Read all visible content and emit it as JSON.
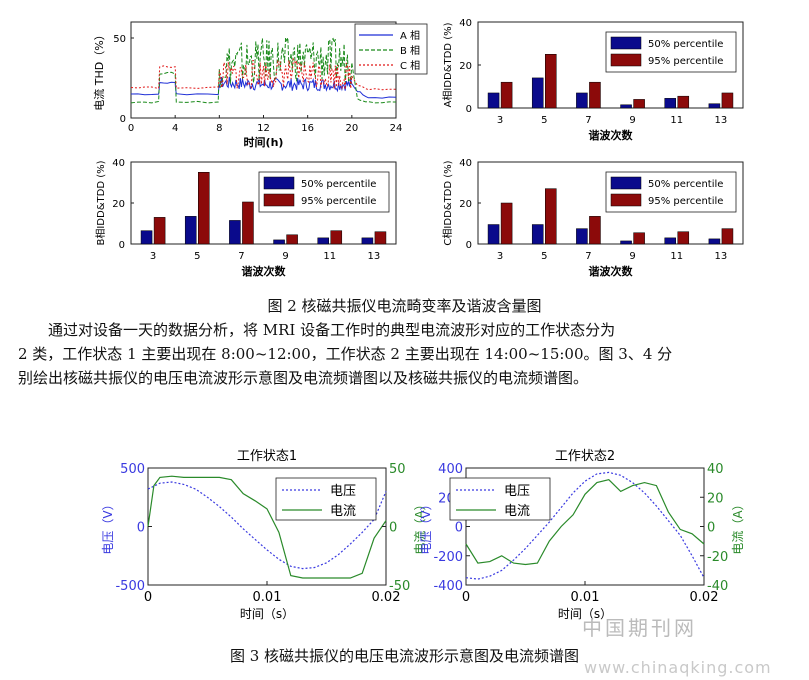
{
  "figure2": {
    "caption": "图 2 核磁共振仪电流畸变率及谐波含量图",
    "thd_chart": {
      "ylabel": "电流 THD（%）",
      "xlabel": "时间(h)",
      "xticks": [
        "0",
        "4",
        "8",
        "12",
        "16",
        "20",
        "24"
      ],
      "yticks": [
        "0",
        "50"
      ],
      "ylim": [
        0,
        60
      ],
      "legend": [
        "A 相",
        "B 相",
        "C 相"
      ],
      "colors": [
        "#1f2fd6",
        "#1a8a1a",
        "#e01818"
      ]
    },
    "harmonic_charts": [
      {
        "ylabel": "A相IDD&TDD (%)",
        "xlabel": "",
        "yticks": [
          "0",
          "20",
          "40"
        ]
      },
      {
        "ylabel": "B相IDD&TDD (%)",
        "xlabel": "谐波次数",
        "yticks": [
          "0",
          "20",
          "40"
        ]
      },
      {
        "ylabel": "C相IDD&TDD (%)",
        "xlabel": "谐波次数",
        "yticks": [
          "0",
          "20",
          "40"
        ]
      }
    ],
    "harmonic_xlabel_a": "谐波次数",
    "legend_50": "50% percentile",
    "legend_95": "95% percentile",
    "color_50": "#0a0a8c",
    "color_95": "#8c0a0a"
  },
  "paragraph": {
    "line1": "通过对设备一天的数据分析，将 MRI 设备工作时的典型电流波形对应的工作状态分为",
    "line2": "2 类，工作状态 1  主要出现在 8:00~12:00，工作状态 2 主要出现在 14:00~15:00。图 3、4 分",
    "line3": "别绘出核磁共振仪的电压电流波形示意图及电流频谱图以及核磁共振仪的电流频谱图。"
  },
  "figure3": {
    "caption": "图 3  核磁共振仪的电压电流波形示意图及电流频谱图",
    "panels": [
      {
        "title": "工作状态1",
        "left_label": "电压（V）",
        "right_label": "电流（A）",
        "xlabel": "时间（s）",
        "left_ticks": [
          "500",
          "0",
          "-500"
        ],
        "right_ticks": [
          "50",
          "0",
          "-50"
        ],
        "xticks": [
          "0",
          "0.01",
          "0.02"
        ]
      },
      {
        "title": "工作状态2",
        "left_label": "电压（V）",
        "right_label": "电流（A）",
        "xlabel": "时间（s）",
        "left_ticks": [
          "400",
          "200",
          "0",
          "-200",
          "-400"
        ],
        "right_ticks": [
          "40",
          "20",
          "0",
          "-20",
          "-40"
        ],
        "xticks": [
          "0",
          "0.01",
          "0.02"
        ]
      }
    ],
    "legend_voltage": "电压",
    "legend_current": "电流",
    "voltage_color": "#3a3ae0",
    "current_color": "#2a8a2a"
  },
  "watermark": {
    "cn": "中国期刊网",
    "url": "www.chinaqking.com"
  },
  "chart_data": [
    {
      "type": "line",
      "title": "",
      "xlabel": "时间(h)",
      "ylabel": "电流 THD（%）",
      "xlim": [
        0,
        24
      ],
      "ylim": [
        0,
        60
      ],
      "series": [
        {
          "name": "A 相",
          "x": [
            0,
            2.5,
            2.6,
            4,
            4.1,
            7.9,
            8,
            12,
            16,
            20,
            20.5,
            21.5,
            24
          ],
          "values": [
            15,
            15,
            22,
            22,
            15,
            15,
            22,
            21,
            21,
            21,
            17,
            13,
            13
          ]
        },
        {
          "name": "B 相",
          "x": [
            0,
            2.5,
            2.6,
            4,
            4.1,
            7.9,
            8,
            12,
            16,
            20,
            20.5,
            21.5,
            24
          ],
          "values": [
            10,
            10,
            28,
            28,
            10,
            10,
            33,
            36,
            37,
            35,
            12,
            10,
            10
          ]
        },
        {
          "name": "C 相",
          "x": [
            0,
            2.5,
            2.6,
            4,
            4.1,
            7.9,
            8,
            12,
            16,
            20,
            20.5,
            21.5,
            24
          ],
          "values": [
            19,
            19,
            32,
            32,
            19,
            19,
            26,
            28,
            28,
            26,
            21,
            18,
            18
          ]
        }
      ]
    },
    {
      "type": "bar",
      "xlabel": "谐波次数",
      "ylabel": "A相IDD&TDD (%)",
      "ylim": [
        0,
        40
      ],
      "categories": [
        "3",
        "5",
        "7",
        "9",
        "11",
        "13"
      ],
      "series": [
        {
          "name": "50% percentile",
          "values": [
            7,
            14,
            7,
            1.5,
            4.5,
            2
          ]
        },
        {
          "name": "95% percentile",
          "values": [
            12,
            25,
            12,
            4,
            5.5,
            7
          ]
        }
      ]
    },
    {
      "type": "bar",
      "xlabel": "谐波次数",
      "ylabel": "B相IDD&TDD (%)",
      "ylim": [
        0,
        40
      ],
      "categories": [
        "3",
        "5",
        "7",
        "9",
        "11",
        "13"
      ],
      "series": [
        {
          "name": "50% percentile",
          "values": [
            6.5,
            13.5,
            11.5,
            2,
            3,
            3
          ]
        },
        {
          "name": "95% percentile",
          "values": [
            13,
            35,
            20.5,
            4.5,
            6.5,
            6
          ]
        }
      ]
    },
    {
      "type": "bar",
      "xlabel": "谐波次数",
      "ylabel": "C相IDD&TDD (%)",
      "ylim": [
        0,
        40
      ],
      "categories": [
        "3",
        "5",
        "7",
        "9",
        "11",
        "13"
      ],
      "series": [
        {
          "name": "50% percentile",
          "values": [
            9.5,
            9.5,
            7.5,
            1.5,
            3,
            2.5
          ]
        },
        {
          "name": "95% percentile",
          "values": [
            20,
            27,
            13.5,
            5.5,
            6,
            7.5
          ]
        }
      ]
    },
    {
      "type": "line",
      "title": "工作状态1",
      "xlabel": "时间（s）",
      "xlim": [
        0,
        0.02
      ],
      "series": [
        {
          "name": "电压",
          "axis": "left",
          "ylim": [
            -500,
            500
          ],
          "x": [
            0,
            0.001,
            0.002,
            0.003,
            0.004,
            0.005,
            0.006,
            0.007,
            0.008,
            0.009,
            0.01,
            0.011,
            0.012,
            0.013,
            0.014,
            0.015,
            0.016,
            0.017,
            0.018,
            0.019,
            0.02
          ],
          "values": [
            320,
            370,
            380,
            360,
            320,
            250,
            170,
            80,
            -20,
            -110,
            -200,
            -280,
            -340,
            -360,
            -350,
            -310,
            -240,
            -150,
            -50,
            60,
            300
          ]
        },
        {
          "name": "电流",
          "axis": "right",
          "ylim": [
            -50,
            50
          ],
          "x": [
            0,
            0.0005,
            0.001,
            0.002,
            0.003,
            0.004,
            0.005,
            0.006,
            0.007,
            0.008,
            0.009,
            0.01,
            0.011,
            0.012,
            0.013,
            0.014,
            0.015,
            0.016,
            0.017,
            0.018,
            0.019,
            0.02
          ],
          "values": [
            0,
            35,
            42,
            43,
            42,
            42,
            42,
            42,
            40,
            28,
            22,
            15,
            -5,
            -42,
            -44,
            -44,
            -44,
            -44,
            -44,
            -40,
            -10,
            5
          ]
        }
      ]
    },
    {
      "type": "line",
      "title": "工作状态2",
      "xlabel": "时间（s）",
      "xlim": [
        0,
        0.02
      ],
      "series": [
        {
          "name": "电压",
          "axis": "left",
          "ylim": [
            -400,
            400
          ],
          "x": [
            0,
            0.001,
            0.002,
            0.003,
            0.004,
            0.005,
            0.006,
            0.007,
            0.008,
            0.009,
            0.01,
            0.011,
            0.012,
            0.013,
            0.014,
            0.015,
            0.016,
            0.017,
            0.018,
            0.019,
            0.02
          ],
          "values": [
            -350,
            -360,
            -340,
            -300,
            -230,
            -150,
            -60,
            30,
            130,
            230,
            310,
            360,
            370,
            350,
            300,
            230,
            140,
            40,
            -60,
            -200,
            -350
          ]
        },
        {
          "name": "电流",
          "axis": "right",
          "ylim": [
            -40,
            40
          ],
          "x": [
            0,
            0.001,
            0.002,
            0.003,
            0.004,
            0.005,
            0.006,
            0.007,
            0.008,
            0.009,
            0.01,
            0.011,
            0.012,
            0.013,
            0.014,
            0.015,
            0.016,
            0.017,
            0.018,
            0.019,
            0.02
          ],
          "values": [
            -12,
            -25,
            -24,
            -20,
            -25,
            -26,
            -25,
            -10,
            0,
            8,
            22,
            30,
            32,
            24,
            28,
            30,
            28,
            10,
            -2,
            -5,
            -12
          ]
        }
      ]
    }
  ]
}
